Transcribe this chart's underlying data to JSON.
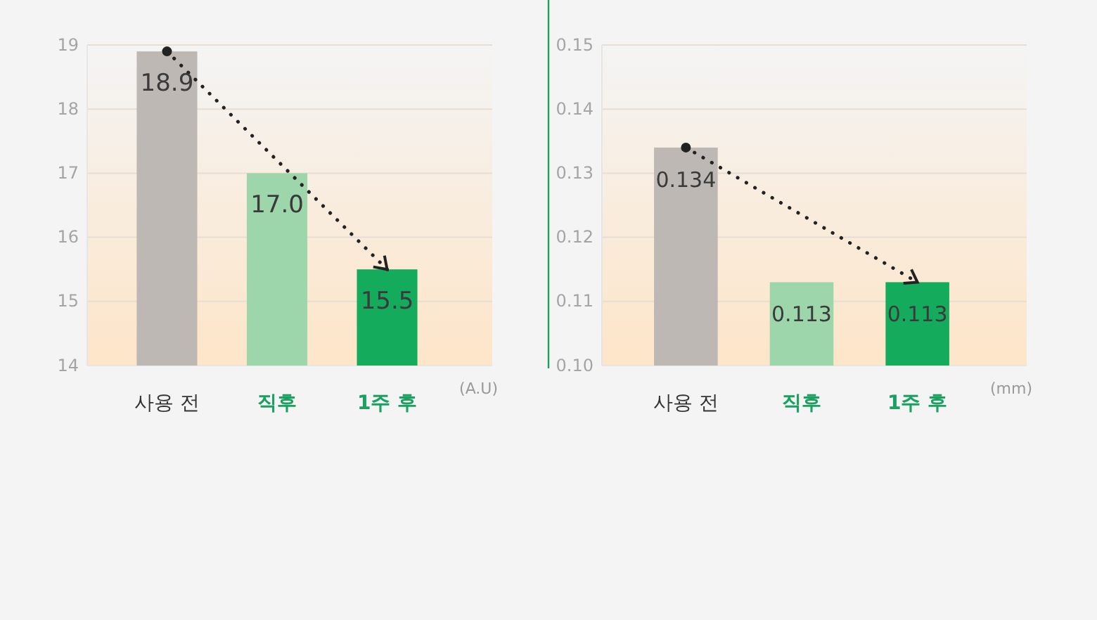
{
  "chart_data": [
    {
      "type": "bar",
      "categories": [
        "사용 전",
        "직후",
        "1주 후"
      ],
      "values": [
        18.9,
        17.0,
        15.5
      ],
      "colors": [
        "#bdb8b3",
        "#9dd6ab",
        "#14ac5c"
      ],
      "value_labels": [
        "18.9",
        "17.0",
        "15.5"
      ],
      "ylim": [
        14,
        19
      ],
      "yticks": [
        14,
        15,
        16,
        17,
        18,
        19
      ],
      "grid": "y",
      "annotations": [
        "(A.U)"
      ]
    },
    {
      "type": "bar",
      "categories": [
        "사용 전",
        "직후",
        "1주 후"
      ],
      "values": [
        0.134,
        0.113,
        0.113
      ],
      "colors": [
        "#bdb8b3",
        "#9dd6ab",
        "#14ac5c"
      ],
      "value_labels": [
        "0.134",
        "0.113",
        "0.113"
      ],
      "ylim": [
        0.1,
        0.15
      ],
      "yticks": [
        {
          "value": 0.1,
          "label": "0.10"
        },
        0.11,
        0.12,
        0.13,
        0.14,
        {
          "value": 0.15,
          "label": "0.15"
        }
      ],
      "grid": "y",
      "annotations": [
        "(mm)"
      ]
    }
  ]
}
